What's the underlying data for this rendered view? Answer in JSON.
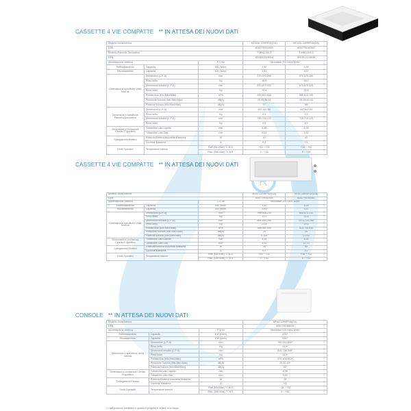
{
  "sections": [
    {
      "title": "CASSETTE 4 VIE COMPATTE",
      "note": "** IN ATTESA DEI NUOVI DATI",
      "header": [
        [
          "Modello Unità Interna",
          [
            "MCA3U-12HRFNX(GA)",
            "MCA3U-18HRFNX(GA)"
          ]
        ],
        [
          "EAN",
          [
            "8052705162530",
            "8052705162547"
          ]
        ],
        [
          "Modello Pannello Decorativo",
          [
            "T-MBQ-03C3",
            "T-MBQ-03C3"
          ]
        ],
        [
          "EAN",
          [
            "8003912218048",
            "8003912218048"
          ]
        ]
      ],
      "power": [
        "Alimentazione elettrica",
        "F-V-Hz",
        "Monofase 220-240V 50Hz"
      ],
      "rows": [
        [
          "Raffreddamento",
          "Capacità",
          "kW (Nom)",
          [
            "3,52",
            "5,28"
          ]
        ],
        [
          "Riscaldamento",
          "Capacità",
          "kW (Nom)",
          [
            "3,81",
            "5,57"
          ]
        ],
        [
          "Dimensioni e specifiche Unità Interna",
          "Dimensioni (L-P-A)",
          "mm",
          [
            "570-570-260",
            "570-570-260"
          ]
        ],
        [
          "Dimensioni e specifiche Unità Interna",
          "Peso netto",
          "Kg",
          [
            "16,2",
            "16,2"
          ]
        ],
        [
          "Dimensioni e specifiche Unità Interna",
          "Dimensioni imballo (L-P-A)",
          "mm",
          [
            "670-670-325",
            "670-670-325"
          ]
        ],
        [
          "Dimensioni e specifiche Unità Interna",
          "Peso lordo",
          "Kg",
          [
            "20,4",
            "20,6"
          ]
        ],
        [
          "Dimensioni e specifiche Unità Interna",
          "Portata Aria (Min-Med-Max)",
          "m³/h",
          [
            "420-510-620",
            "580-610-720"
          ]
        ],
        [
          "Dimensioni e specifiche Unità Interna",
          "Pressione Sonora (Min-Med-Max)",
          "dB(A)",
          [
            "25-33-36-41",
            "29-35-40-43"
          ]
        ],
        [
          "Dimensioni e specifiche Unità Interna",
          "Potenza Sonora (Min-Med-Max)",
          "dB(A)",
          [
            "57",
            "59"
          ]
        ],
        [
          "Dimensioni e specifiche Pannello Decorativo",
          "Dimensioni (L-P-A)",
          "mm",
          [
            "647-647-50",
            "647-647-50"
          ]
        ],
        [
          "Dimensioni e specifiche Pannello Decorativo",
          "Peso netto",
          "Kg",
          [
            "2,5",
            "2,5"
          ]
        ],
        [
          "Dimensioni e specifiche Pannello Decorativo",
          "Dimensioni imballo (L-P-A)",
          "mm",
          [
            "715-715-123",
            "715-715-123"
          ]
        ],
        [
          "Dimensioni e specifiche Pannello Decorativo",
          "Peso lordo",
          "Kg",
          [
            "4,5",
            "4,5"
          ]
        ],
        [
          "Dimensioni e Limitazioni Circuito Frigorifero",
          "Tubazione Lato Liquido",
          "mm",
          [
            "6,35",
            "6,35"
          ]
        ],
        [
          "Dimensioni e Limitazioni Circuito Frigorifero",
          "Tubazione Lato Gas",
          "mm",
          [
            "9,52",
            "9,52"
          ]
        ],
        [
          "Collegamenti Elettrici",
          "Potenza Elettrica Assorbita Massima",
          "W",
          [
            "40",
            "40"
          ]
        ],
        [
          "Collegamenti Elettrici",
          "Corrente Massima",
          "A",
          [
            "0,2",
            "0,2"
          ]
        ],
        [
          "Limiti Operativi",
          "Temperature Interne",
          "Raff (Min-Max) °C B.U.",
          [
            "+16 ~ +32",
            "+16 ~ +32"
          ]
        ],
        [
          "Limiti Operativi",
          "Temperature Interne",
          "Risc. (Min-Max) °C B.S.",
          [
            "0 ~ +30",
            "0 ~ +30"
          ]
        ]
      ]
    },
    {
      "title": "CASSETTE 4 VIE COMPATTE",
      "note": "** IN ATTESA DEI NUOVI DATI",
      "header": [
        [
          "Modello Unità Interna",
          [
            "MTIU-12HWFNX(GA)",
            "MTIU-18HWFNX(GA)"
          ]
        ],
        [
          "EAN",
          [
            "8052705162554",
            "8052705162561"
          ]
        ]
      ],
      "power": [
        "Alimentazione elettrica",
        "1-V-Hz",
        "Monofase 220-240V 50Hz"
      ],
      "rows": [
        [
          "Raffreddamento",
          "Capacità",
          "kW (Nom)",
          [
            "3,52",
            "5,28"
          ]
        ],
        [
          "Riscaldamento",
          "Capacità",
          "kW (Nom)",
          [
            "3,81",
            "5,57"
          ]
        ],
        [
          "Dimensioni e specifiche Unità Interna",
          "Dimensioni (L-P-A)",
          "mm",
          [
            "700-506-200",
            "880-674-210"
          ]
        ],
        [
          "Dimensioni e specifiche Unità Interna",
          "Peso netto",
          "Kg",
          [
            "17,3",
            "23,4"
          ]
        ],
        [
          "Dimensioni e specifiche Unità Interna",
          "Dimensioni imballo (L-P-A)",
          "mm",
          [
            "868-640-285",
            "1070-725-285"
          ]
        ],
        [
          "Dimensioni e specifiche Unità Interna",
          "Peso lordo",
          "Kg",
          [
            "21,5",
            "29,5"
          ]
        ],
        [
          "Dimensioni e specifiche Unità Interna",
          "Portata Aria (Min-Med-Max)",
          "m³/h",
          [
            "300-460-600",
            "515-700-910"
          ]
        ],
        [
          "Dimensioni e specifiche Unità Interna",
          "Pressione Sonora (Min-Med-Max)",
          "dB(A)",
          [
            "25",
            "25"
          ]
        ],
        [
          "Dimensioni e specifiche Unità Interna",
          "Potenza Sonora (Min-Med-Max)",
          "dB(A)",
          [
            "0-100",
            "0-100"
          ]
        ],
        [
          "Dimensioni e Limitazioni Circuito Frigorifero",
          "Tubazione Lato Liquido",
          "mm",
          [
            "6,35",
            "6,35"
          ]
        ],
        [
          "Dimensioni e Limitazioni Circuito Frigorifero",
          "Tubazione Lato Gas",
          "mm",
          [
            "9,52",
            "12,70"
          ]
        ],
        [
          "Collegamenti Elettrici",
          "Potenza Elettrica Assorbita Massima",
          "W",
          [
            "36",
            "50"
          ]
        ],
        [
          "Collegamenti Elettrici",
          "Corrente Massima",
          "A",
          [
            "0,2",
            "0,2"
          ]
        ],
        [
          "Limiti Operativi",
          "Temperature Interne",
          "Raff (Min-Max) °C B.U.",
          [
            "+16 ~ +32",
            "+16 ~ +32"
          ]
        ],
        [
          "Limiti Operativi",
          "Temperature Interne",
          "Risc. (Min-Max) °C B.S.",
          [
            "0 ~ +30",
            "0 ~ +30"
          ]
        ]
      ]
    },
    {
      "title": "CONSOLE",
      "note": "** IN ATTESA DEI NUOVI DATI",
      "header": [
        [
          "Modello Unità Interna",
          [
            "MFAU-12HRFN8(GA)"
          ]
        ],
        [
          "EAN",
          [
            "8052705166033"
          ]
        ]
      ],
      "power": [
        "Alimentazione elettrica",
        "F-V-Hz",
        "Monofase 220-240V 50Hz"
      ],
      "rows": [
        [
          "Raffreddamento",
          "Capacità",
          "KW (Nom)",
          [
            "3,52*"
          ]
        ],
        [
          "Riscaldamento",
          "Capacità",
          "KW (Nom)",
          [
            "3,81*"
          ]
        ],
        [
          "Dimensioni e specifiche Unità Interna",
          "Dimensioni (L-P-A)",
          "mm",
          [
            "700-210-600*"
          ]
        ],
        [
          "Dimensioni e specifiche Unità Interna",
          "Peso netto",
          "Kg",
          [
            "14,8*"
          ]
        ],
        [
          "Dimensioni e specifiche Unità Interna",
          "Dimensioni imballo (L-P-A)",
          "mm",
          [
            "810-738-305*"
          ]
        ],
        [
          "Dimensioni e specifiche Unità Interna",
          "Peso lordo",
          "Kg",
          [
            "18,0*"
          ]
        ],
        [
          "Dimensioni e specifiche Unità Interna",
          "Portata Aria (Min-Med-Max)",
          "m³/h",
          [
            "270-400-512*"
          ]
        ],
        [
          "Dimensioni e specifiche Unità Interna",
          "Pressione Sonora (Min-Med-Max)",
          "dB(A)",
          [
            "25-42-43*"
          ]
        ],
        [
          "Dimensioni e specifiche Unità Interna",
          "Potenza Sonora (Min-Med-Max)",
          "dB(A)",
          [
            "56*"
          ]
        ],
        [
          "Dimensioni e Limitazioni Circuito Frigorifero",
          "Tubazione Lato Liquido",
          "mm",
          [
            "6,35"
          ]
        ],
        [
          "Dimensioni e Limitazioni Circuito Frigorifero",
          "Tubazione Lato Gas",
          "mm",
          [
            "9,52"
          ]
        ],
        [
          "Collegamenti Elettrici",
          "Potenza Elettrica Assorbita Massima",
          "W",
          [
            "25"
          ]
        ],
        [
          "Collegamenti Elettrici",
          "Corrente Massima",
          "A",
          [
            "0,1"
          ]
        ],
        [
          "Limiti Operativi",
          "Temperature Interne",
          "Raff (Min-Max) °C B.U.",
          [
            "+16 ~ +32"
          ]
        ],
        [
          "Limiti Operativi",
          "Temperature Interne",
          "Risc. (Min-Max) °C B.S.",
          [
            "0 ~ +30"
          ]
        ]
      ]
    }
  ],
  "footnote": "* I dati possono cambiare in quanto il progetto è in fase di sviluppo",
  "colors": {
    "title": "#3a9ad0",
    "watermark": "#cfe6f5"
  }
}
